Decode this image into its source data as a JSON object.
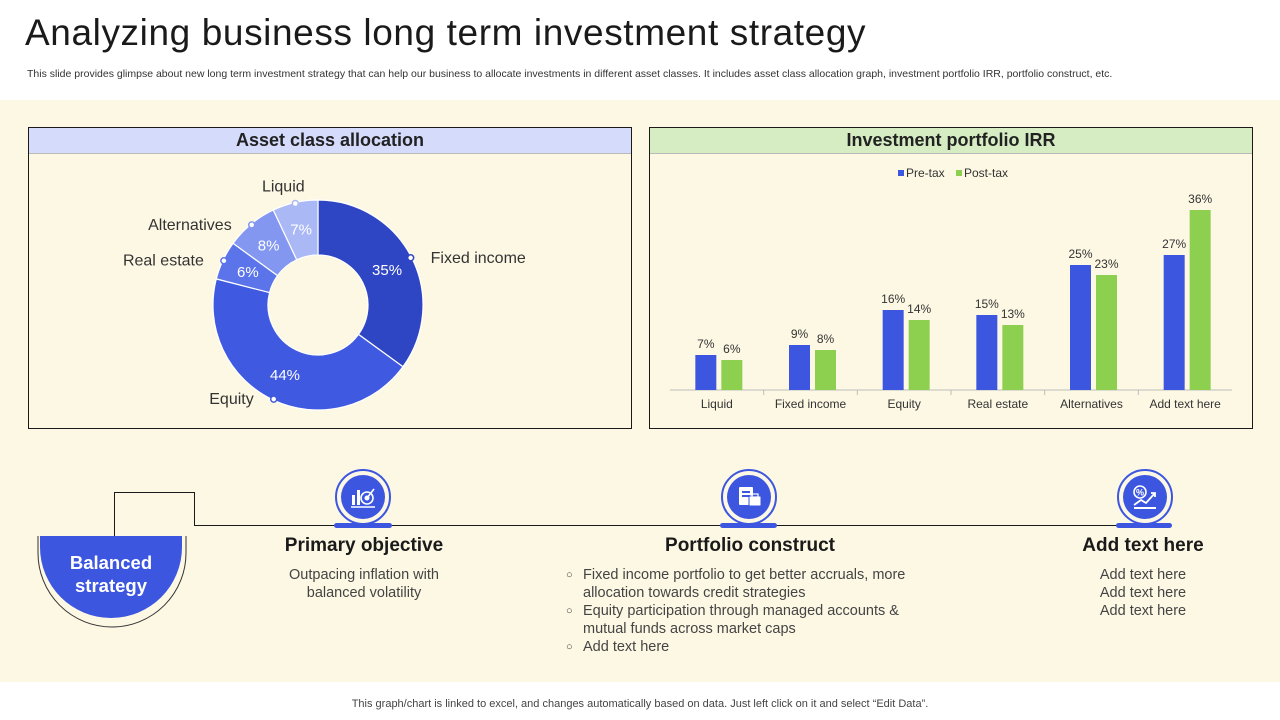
{
  "header": {
    "title": "Analyzing business long term investment strategy",
    "subtitle": "This slide provides glimpse about new long term investment strategy that can help our business to allocate investments in different asset classes. It includes asset class allocation graph, investment portfolio IRR, portfolio construct, etc."
  },
  "colors": {
    "accent_blue": "#3c56e0",
    "accent_green": "#8dd04f",
    "band_bg": "#fdf8e4"
  },
  "chart_data": [
    {
      "type": "pie",
      "title": "Asset class allocation",
      "slices": [
        {
          "label": "Fixed income",
          "value": 35,
          "display": "35%",
          "color": "#2f46c4"
        },
        {
          "label": "Equity",
          "value": 44,
          "display": "44%",
          "color": "#3f5ae0"
        },
        {
          "label": "Real estate",
          "value": 6,
          "display": "6%",
          "color": "#5c74ea"
        },
        {
          "label": "Alternatives",
          "value": 8,
          "display": "8%",
          "color": "#8397f0"
        },
        {
          "label": "Liquid",
          "value": 7,
          "display": "7%",
          "color": "#aab8f6"
        }
      ]
    },
    {
      "type": "bar",
      "title": "Investment portfolio IRR",
      "categories": [
        "Liquid",
        "Fixed income",
        "Equity",
        "Real estate",
        "Alternatives",
        "Add text here"
      ],
      "series": [
        {
          "name": "Pre-tax",
          "values": [
            7,
            9,
            16,
            15,
            25,
            27
          ],
          "color": "#3c56e0"
        },
        {
          "name": "Post-tax",
          "values": [
            6,
            8,
            14,
            13,
            23,
            36
          ],
          "color": "#8dd04f"
        }
      ],
      "value_suffix": "%",
      "ylim": [
        0,
        40
      ],
      "legend": "top-center",
      "grid": false
    }
  ],
  "timeline": {
    "badge": "Balanced strategy",
    "columns": [
      {
        "title": "Primary objective",
        "icon": "target-chart-icon",
        "text": [
          "Outpacing inflation with",
          "balanced volatility"
        ]
      },
      {
        "title": "Portfolio construct",
        "icon": "portfolio-docs-icon",
        "bullets": [
          "Fixed income portfolio to get better accruals, more allocation towards credit strategies",
          "Equity participation through managed accounts & mutual funds across market caps",
          "Add text here"
        ]
      },
      {
        "title": "Add text here",
        "icon": "growth-money-icon",
        "text": [
          "Add text here",
          "Add text here",
          "Add text here"
        ]
      }
    ]
  },
  "footer": "This graph/chart is linked to excel,  and changes automatically based on data. Just left click on it and select “Edit Data”."
}
